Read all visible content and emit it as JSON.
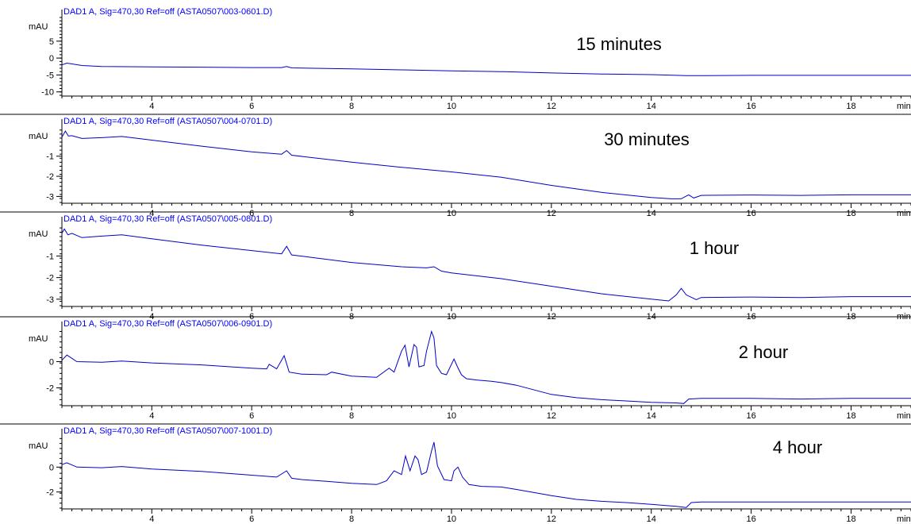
{
  "chart_data": [
    {
      "type": "line",
      "header": "DAD1 A, Sig=470,30 Ref=off (ASTA0507\\003-0601.D)",
      "annotation": "15 minutes",
      "ylabel": "mAU",
      "xunit": "min",
      "xlim": [
        2.2,
        19.2
      ],
      "ylim": [
        -11,
        12
      ],
      "yticks": [
        -10,
        -5,
        0,
        5
      ],
      "xticks": [
        4,
        6,
        8,
        10,
        12,
        14,
        16,
        18
      ],
      "color": "#0000c8",
      "x": [
        2.2,
        2.3,
        2.6,
        3.0,
        4.0,
        5.0,
        6.0,
        6.6,
        6.7,
        6.8,
        8.0,
        9.0,
        10.0,
        11.0,
        12.0,
        13.0,
        14.0,
        14.5,
        14.7,
        15.0,
        16.0,
        17.0,
        18.0,
        19.2
      ],
      "y": [
        -2.0,
        -1.5,
        -2.2,
        -2.5,
        -2.6,
        -2.7,
        -2.8,
        -2.8,
        -2.5,
        -2.9,
        -3.2,
        -3.5,
        -3.8,
        -4.0,
        -4.4,
        -4.7,
        -4.9,
        -5.1,
        -5.2,
        -5.2,
        -5.1,
        -5.1,
        -5.1,
        -5.1
      ]
    },
    {
      "type": "line",
      "header": "DAD1 A, Sig=470,30 Ref=off (ASTA0507\\004-0701.D)",
      "annotation": "30 minutes",
      "ylabel": "mAU",
      "xunit": "min",
      "xlim": [
        2.2,
        19.2
      ],
      "ylim": [
        -3.3,
        0.45
      ],
      "yticks": [
        -3,
        -2,
        -1
      ],
      "xticks": [
        4,
        6,
        8,
        10,
        12,
        14,
        16,
        18
      ],
      "color": "#0000c8",
      "x": [
        2.2,
        2.27,
        2.33,
        2.4,
        2.6,
        3.0,
        3.4,
        4.0,
        5.0,
        6.0,
        6.6,
        6.7,
        6.8,
        8.0,
        9.0,
        10.0,
        11.0,
        12.0,
        13.0,
        14.0,
        14.4,
        14.6,
        14.7,
        14.75,
        14.85,
        15.0,
        16.0,
        17.0,
        18.0,
        19.2
      ],
      "y": [
        -0.05,
        0.25,
        0.0,
        0.02,
        -0.12,
        -0.08,
        -0.02,
        -0.2,
        -0.5,
        -0.78,
        -0.9,
        -0.72,
        -0.95,
        -1.3,
        -1.55,
        -1.78,
        -2.05,
        -2.45,
        -2.8,
        -3.05,
        -3.12,
        -3.12,
        -2.98,
        -2.92,
        -3.08,
        -2.95,
        -2.93,
        -2.95,
        -2.92,
        -2.92
      ]
    },
    {
      "type": "line",
      "header": "DAD1 A, Sig=470,30 Ref=off (ASTA0507\\005-0801.D)",
      "annotation": "1 hour",
      "ylabel": "mAU",
      "xunit": "min",
      "xlim": [
        2.2,
        19.2
      ],
      "ylim": [
        -3.3,
        0.45
      ],
      "yticks": [
        -3,
        -2,
        -1
      ],
      "xticks": [
        4,
        6,
        8,
        10,
        12,
        14,
        16,
        18
      ],
      "color": "#0000c8",
      "x": [
        2.2,
        2.25,
        2.32,
        2.4,
        2.6,
        3.0,
        3.4,
        4.0,
        5.0,
        6.0,
        6.6,
        6.7,
        6.8,
        8.0,
        9.0,
        9.5,
        9.65,
        9.8,
        10.0,
        11.0,
        12.0,
        13.0,
        14.0,
        14.35,
        14.5,
        14.6,
        14.7,
        14.9,
        15.0,
        16.0,
        17.0,
        18.0,
        19.2
      ],
      "y": [
        0.05,
        0.25,
        -0.02,
        0.05,
        -0.15,
        -0.08,
        -0.02,
        -0.2,
        -0.5,
        -0.75,
        -0.9,
        -0.55,
        -0.95,
        -1.3,
        -1.5,
        -1.55,
        -1.5,
        -1.7,
        -1.78,
        -2.05,
        -2.4,
        -2.75,
        -3.0,
        -3.08,
        -2.8,
        -2.5,
        -2.8,
        -3.02,
        -2.92,
        -2.9,
        -2.92,
        -2.88,
        -2.88
      ]
    },
    {
      "type": "line",
      "header": "DAD1 A, Sig=470,30 Ref=off (ASTA0507\\006-0901.D)",
      "annotation": "2 hour",
      "ylabel": "mAU",
      "xunit": "min",
      "xlim": [
        2.2,
        19.2
      ],
      "ylim": [
        -3.3,
        2.45
      ],
      "yticks": [
        -2,
        0
      ],
      "xticks": [
        4,
        6,
        8,
        10,
        12,
        14,
        16,
        18
      ],
      "color": "#0000c8",
      "x": [
        2.2,
        2.3,
        2.5,
        3.0,
        3.4,
        4.0,
        5.0,
        6.0,
        6.3,
        6.35,
        6.5,
        6.65,
        6.75,
        7.0,
        7.5,
        7.6,
        8.0,
        8.5,
        8.75,
        8.85,
        9.0,
        9.07,
        9.15,
        9.25,
        9.3,
        9.35,
        9.45,
        9.5,
        9.6,
        9.65,
        9.7,
        9.8,
        9.9,
        10.0,
        10.05,
        10.12,
        10.2,
        10.3,
        10.5,
        10.8,
        11.0,
        11.3,
        11.6,
        12.0,
        12.5,
        13.0,
        13.5,
        14.0,
        14.5,
        14.65,
        14.75,
        15.0,
        16.0,
        17.0,
        18.0,
        19.2
      ],
      "y": [
        0.1,
        0.5,
        0.0,
        -0.05,
        0.05,
        -0.1,
        -0.25,
        -0.5,
        -0.55,
        -0.2,
        -0.55,
        0.45,
        -0.8,
        -0.95,
        -1.0,
        -0.8,
        -1.1,
        -1.2,
        -0.5,
        -0.8,
        0.8,
        1.25,
        -0.4,
        1.3,
        1.1,
        -0.4,
        -0.3,
        0.8,
        2.3,
        1.8,
        -0.3,
        -0.9,
        -1.0,
        -0.2,
        0.2,
        -0.4,
        -1.0,
        -1.3,
        -1.4,
        -1.5,
        -1.6,
        -1.8,
        -2.1,
        -2.5,
        -2.75,
        -2.9,
        -3.0,
        -3.1,
        -3.15,
        -3.2,
        -2.85,
        -2.8,
        -2.8,
        -2.85,
        -2.8,
        -2.8
      ]
    },
    {
      "type": "line",
      "header": "DAD1 A, Sig=470,30 Ref=off (ASTA0507\\007-1001.D)",
      "annotation": "4 hour",
      "ylabel": "mAU",
      "xunit": "min",
      "xlim": [
        2.2,
        19.2
      ],
      "ylim": [
        -3.3,
        2.45
      ],
      "yticks": [
        -2,
        0
      ],
      "xticks": [
        4,
        6,
        8,
        10,
        12,
        14,
        16,
        18
      ],
      "color": "#0000c8",
      "x": [
        2.2,
        2.3,
        2.5,
        3.0,
        3.4,
        4.0,
        5.0,
        6.0,
        6.5,
        6.7,
        6.8,
        7.0,
        7.5,
        8.0,
        8.5,
        8.7,
        8.85,
        9.0,
        9.08,
        9.17,
        9.27,
        9.33,
        9.4,
        9.5,
        9.6,
        9.65,
        9.72,
        9.85,
        10.0,
        10.05,
        10.13,
        10.22,
        10.35,
        10.6,
        11.0,
        11.3,
        11.6,
        12.0,
        12.5,
        13.0,
        13.5,
        14.0,
        14.5,
        14.7,
        14.8,
        15.0,
        16.0,
        17.0,
        18.0,
        19.2
      ],
      "y": [
        0.2,
        0.35,
        0.0,
        -0.05,
        0.05,
        -0.15,
        -0.35,
        -0.65,
        -0.8,
        -0.3,
        -0.9,
        -1.0,
        -1.15,
        -1.3,
        -1.4,
        -1.1,
        -0.3,
        -0.6,
        0.9,
        -0.3,
        0.9,
        0.6,
        -0.6,
        -0.4,
        1.3,
        2.0,
        0.1,
        -1.0,
        -1.1,
        -0.3,
        0.0,
        -0.8,
        -1.4,
        -1.55,
        -1.6,
        -1.8,
        -2.0,
        -2.3,
        -2.6,
        -2.75,
        -2.85,
        -3.0,
        -3.15,
        -3.25,
        -2.85,
        -2.8,
        -2.8,
        -2.8,
        -2.8,
        -2.8
      ]
    }
  ]
}
